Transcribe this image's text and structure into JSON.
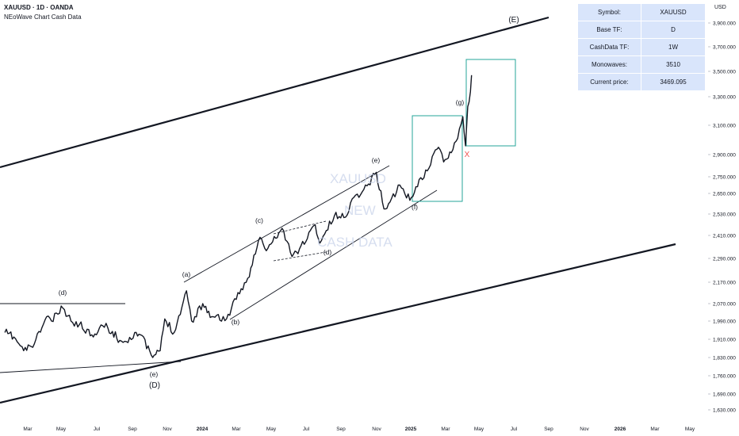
{
  "header": {
    "title": "XAUUSD · 1D · OANDA",
    "subtitle": "NEoWave Chart Cash Data"
  },
  "watermark": {
    "line1": "XAUUSD",
    "line2": "NEW",
    "line3": "CASH DATA"
  },
  "info_table": [
    {
      "label": "Symbol:",
      "value": "XAUUSD"
    },
    {
      "label": "Base TF:",
      "value": "D"
    },
    {
      "label": "CashData TF:",
      "value": "1W"
    },
    {
      "label": "Monowaves:",
      "value": "3510"
    },
    {
      "label": "Current price:",
      "value": "3469.095"
    }
  ],
  "colors": {
    "background": "#ffffff",
    "price": "#131722",
    "box": "#26a69a",
    "marker_x": "#ef5350",
    "panel": "#d9e5fb",
    "text": "#131722"
  },
  "chart_data": {
    "type": "line",
    "title": "XAUUSD · 1D · OANDA",
    "ylabel": "USD",
    "x_tick_labels": [
      "Mar",
      "May",
      "Jul",
      "Sep",
      "Nov",
      "2024",
      "Mar",
      "May",
      "Jul",
      "Sep",
      "Nov",
      "2025",
      "Mar",
      "May",
      "Jul",
      "Sep",
      "Nov",
      "2026",
      "Mar",
      "May"
    ],
    "y_ticks": [
      1630,
      1690,
      1760,
      1830,
      1910,
      1990,
      2070,
      2170,
      2290,
      2410,
      2530,
      2650,
      2750,
      2900,
      3100,
      3300,
      3500,
      3700,
      3900
    ],
    "y_tick_labels": [
      "1,630.000",
      "1,690.000",
      "1,760.000",
      "1,830.000",
      "1,910.000",
      "1,990.000",
      "2,070.000",
      "2,170.000",
      "2,290.000",
      "2,410.000",
      "2,530.000",
      "2,650.000",
      "2,750.000",
      "2,900.000",
      "3,100.000",
      "3,300.000",
      "3,500.000",
      "3,700.000",
      "3,900.000"
    ],
    "current_price": 3469.095,
    "series": [
      {
        "dates": [
          "2023-01-20",
          "2023-02-06",
          "2023-02-24",
          "2023-03-13",
          "2023-04-05",
          "2023-04-14",
          "2023-05-04",
          "2023-05-18",
          "2023-06-02",
          "2023-06-23",
          "2023-07-11",
          "2023-07-20",
          "2023-08-10",
          "2023-08-21",
          "2023-09-05",
          "2023-09-15",
          "2023-10-06",
          "2023-10-19",
          "2023-10-27",
          "2023-11-13",
          "2023-12-04",
          "2023-12-13",
          "2024-01-02",
          "2024-01-18",
          "2024-02-14",
          "2024-03-01",
          "2024-03-21",
          "2024-04-12",
          "2024-04-23",
          "2024-05-20",
          "2024-06-07",
          "2024-06-20",
          "2024-07-17",
          "2024-07-25",
          "2024-08-20",
          "2024-09-06",
          "2024-09-26",
          "2024-10-07",
          "2024-10-31",
          "2024-11-14",
          "2024-11-25",
          "2024-12-12",
          "2024-12-30",
          "2025-01-10",
          "2025-01-30",
          "2025-02-11",
          "2025-02-19",
          "2025-02-28",
          "2025-03-20",
          "2025-04-02",
          "2025-04-07",
          "2025-04-11",
          "2025-04-16",
          "2025-04-18"
        ],
        "values": [
          1940,
          1920,
          1860,
          1890,
          2010,
          1990,
          2050,
          1990,
          1975,
          1930,
          1970,
          1960,
          1905,
          1900,
          1940,
          1930,
          1830,
          1860,
          2000,
          1940,
          2130,
          1990,
          2070,
          2010,
          2000,
          2090,
          2190,
          2400,
          2330,
          2450,
          2300,
          2340,
          2470,
          2370,
          2520,
          2510,
          2640,
          2660,
          2780,
          2560,
          2600,
          2700,
          2610,
          2690,
          2790,
          2910,
          2950,
          2850,
          2990,
          3160,
          2960,
          3230,
          3340,
          3470
        ]
      }
    ],
    "annotations": [
      "(a)",
      "(b)",
      "(c)",
      "(d)",
      "(e)",
      "(f)",
      "(g)",
      "(d)",
      "(e)",
      "(D)",
      "(E)",
      "X"
    ]
  }
}
